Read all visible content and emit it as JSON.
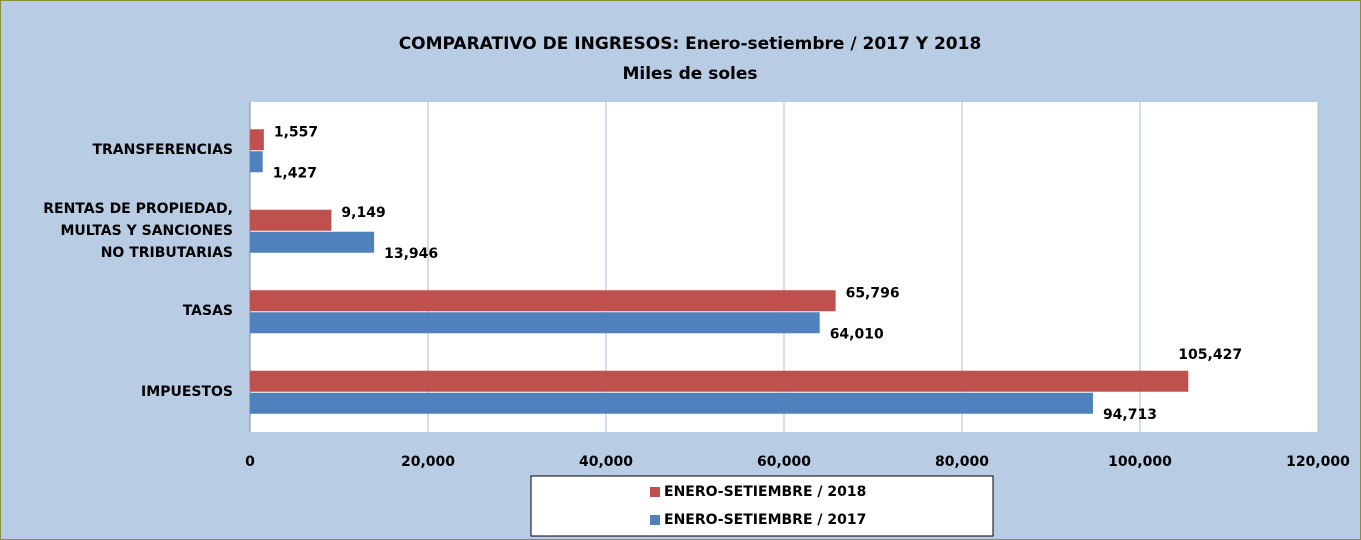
{
  "chart_data": {
    "type": "barh",
    "title": "COMPARATIVO DE INGRESOS: Enero-setiembre / 2017 Y 2018",
    "subtitle": "Miles de soles",
    "categories": [
      "TRANSFERENCIAS",
      "RENTAS DE PROPIEDAD,\nMULTAS Y SANCIONES\nNO TRIBUTARIAS",
      "TASAS",
      "IMPUESTOS"
    ],
    "series": [
      {
        "name": "ENERO-SETIEMBRE / 2018",
        "color": "#c0504d",
        "values": [
          1557,
          9149,
          65796,
          105427
        ],
        "value_labels": [
          "1,557",
          "9,149",
          "65,796",
          "105,427"
        ]
      },
      {
        "name": "ENERO-SETIEMBRE / 2017",
        "color": "#4f81bd",
        "values": [
          1427,
          13946,
          64010,
          94713
        ],
        "value_labels": [
          "1,427",
          "13,946",
          "64,010",
          "94,713"
        ]
      }
    ],
    "xlim": [
      0,
      120000
    ],
    "xticks": [
      0,
      {
        "value": 20000,
        "label": "20,000"
      },
      {
        "value": 40000,
        "label": "40,000"
      },
      {
        "value": 60000,
        "label": "60,000"
      },
      {
        "value": 80000,
        "label": "80,000"
      },
      {
        "value": 100000,
        "label": "100,000"
      },
      {
        "value": 120000,
        "label": "120,000"
      }
    ],
    "grid": true
  }
}
